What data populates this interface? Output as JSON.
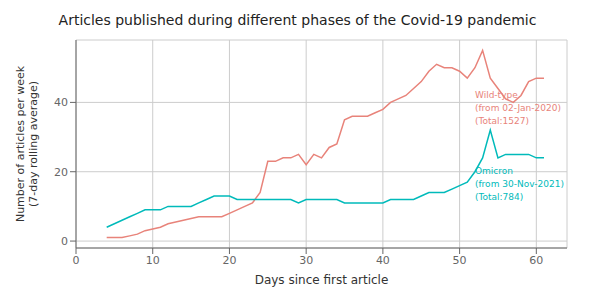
{
  "chart_data": {
    "type": "line",
    "title": "Articles published during different phases of the Covid-19 pandemic",
    "xlabel": "Days since first article",
    "ylabel": "Number of articles per week\n(7-day rolling average)",
    "x": [
      4,
      5,
      6,
      7,
      8,
      9,
      10,
      11,
      12,
      13,
      14,
      15,
      16,
      17,
      18,
      19,
      20,
      21,
      22,
      23,
      24,
      25,
      26,
      27,
      28,
      29,
      30,
      31,
      32,
      33,
      34,
      35,
      36,
      37,
      38,
      39,
      40,
      41,
      42,
      43,
      44,
      45,
      46,
      47,
      48,
      49,
      50,
      51,
      52,
      53,
      54,
      55,
      56,
      57,
      58,
      59,
      60,
      61
    ],
    "series": [
      {
        "color": "#E8837A",
        "values": [
          1,
          1,
          1,
          1.5,
          2,
          3,
          3.5,
          4,
          5,
          5.5,
          6,
          6.5,
          7,
          7,
          7,
          7,
          8,
          9,
          10,
          11,
          14,
          23,
          23,
          24,
          24,
          25,
          22,
          25,
          24,
          27,
          28,
          35,
          36,
          36,
          36,
          37,
          38,
          40,
          41,
          42,
          44,
          46,
          49,
          51,
          50,
          50,
          49,
          47,
          50,
          55,
          47,
          44,
          41,
          40,
          42,
          46,
          47,
          47
        ]
      },
      {
        "color": "#00BABA",
        "values": [
          4,
          5,
          6,
          7,
          8,
          9,
          9,
          9,
          10,
          10,
          10,
          10,
          11,
          12,
          13,
          13,
          13,
          12,
          12,
          12,
          12,
          12,
          12,
          12,
          12,
          11,
          12,
          12,
          12,
          12,
          12,
          11,
          11,
          11,
          11,
          11,
          11,
          12,
          12,
          12,
          12,
          13,
          14,
          14,
          14,
          15,
          16,
          17,
          20,
          24,
          32,
          24,
          25,
          25,
          25,
          25,
          24,
          24
        ]
      }
    ],
    "annotations": [
      {
        "text": "Wild-type\n(from 02-Jan-2020)\n(Total:1527)",
        "x": 52,
        "y": 44,
        "color": "#E8837A"
      },
      {
        "text": "Omicron\n(from 30-Nov-2021)\n(Total:784)",
        "x": 52,
        "y": 22,
        "color": "#00BABA"
      }
    ],
    "xlim": [
      0,
      64
    ],
    "ylim": [
      -2,
      58
    ],
    "xticks": [
      0,
      10,
      20,
      30,
      40,
      50,
      60
    ],
    "yticks": [
      0,
      20,
      40
    ],
    "grid": true
  }
}
